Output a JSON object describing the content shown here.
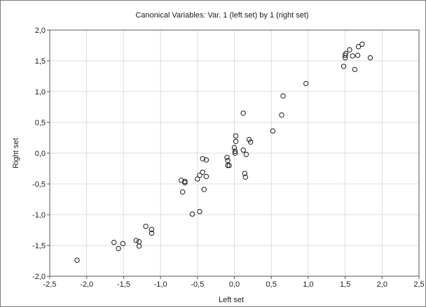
{
  "chart_data": {
    "type": "scatter",
    "title": "Canonical Variables: Var.   1 (left set) by   1 (right set)",
    "xlabel": "Left set",
    "ylabel": "Right set",
    "xlim": [
      -2.5,
      2.5
    ],
    "ylim": [
      -2.0,
      2.0
    ],
    "x_ticks": [
      "-2,5",
      "-2,0",
      "-1,5",
      "-1,0",
      "-0,5",
      "0,0",
      "0,5",
      "1,0",
      "1,5",
      "2,0",
      "2,5"
    ],
    "y_ticks": [
      "-2,0",
      "-1,5",
      "-1,0",
      "-0,5",
      "0,0",
      "0,5",
      "1,0",
      "1,5",
      "2,0"
    ],
    "grid": true,
    "marker": "open-circle",
    "points": [
      [
        -2.13,
        -1.74
      ],
      [
        -1.63,
        -1.45
      ],
      [
        -1.57,
        -1.55
      ],
      [
        -1.51,
        -1.47
      ],
      [
        -1.33,
        -1.42
      ],
      [
        -1.29,
        -1.44
      ],
      [
        -1.29,
        -1.51
      ],
      [
        -1.2,
        -1.19
      ],
      [
        -1.12,
        -1.24
      ],
      [
        -1.12,
        -1.3
      ],
      [
        -0.72,
        -0.44
      ],
      [
        -0.67,
        -0.46
      ],
      [
        -0.67,
        -0.48
      ],
      [
        -0.7,
        -0.63
      ],
      [
        -0.57,
        -0.99
      ],
      [
        -0.47,
        -0.95
      ],
      [
        -0.5,
        -0.42
      ],
      [
        -0.47,
        -0.36
      ],
      [
        -0.43,
        -0.31
      ],
      [
        -0.38,
        -0.38
      ],
      [
        -0.41,
        -0.59
      ],
      [
        -0.43,
        -0.09
      ],
      [
        -0.38,
        -0.11
      ],
      [
        -0.1,
        -0.07
      ],
      [
        -0.09,
        -0.12
      ],
      [
        -0.09,
        -0.2
      ],
      [
        -0.07,
        -0.2
      ],
      [
        0.0,
        0.09
      ],
      [
        0.01,
        0.0
      ],
      [
        0.01,
        0.03
      ],
      [
        0.02,
        0.19
      ],
      [
        0.02,
        0.28
      ],
      [
        0.12,
        0.05
      ],
      [
        0.16,
        -0.02
      ],
      [
        0.2,
        0.22
      ],
      [
        0.22,
        0.18
      ],
      [
        0.12,
        0.65
      ],
      [
        0.14,
        -0.33
      ],
      [
        0.15,
        -0.39
      ],
      [
        0.52,
        0.36
      ],
      [
        0.64,
        0.62
      ],
      [
        0.66,
        0.93
      ],
      [
        0.97,
        1.13
      ],
      [
        1.48,
        1.41
      ],
      [
        1.5,
        1.55
      ],
      [
        1.5,
        1.59
      ],
      [
        1.51,
        1.62
      ],
      [
        1.56,
        1.68
      ],
      [
        1.6,
        1.58
      ],
      [
        1.63,
        1.36
      ],
      [
        1.67,
        1.59
      ],
      [
        1.68,
        1.73
      ],
      [
        1.73,
        1.77
      ],
      [
        1.84,
        1.55
      ]
    ]
  }
}
